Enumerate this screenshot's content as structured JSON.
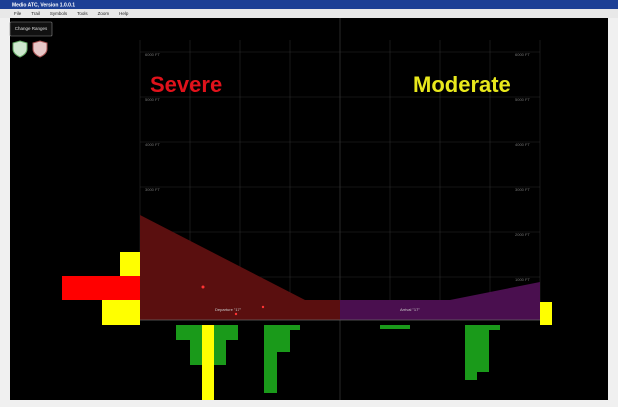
{
  "window": {
    "title": "Medio ATC, Version 1.0.0.1"
  },
  "menu": [
    "File",
    "Trail",
    "Symbols",
    "Tools",
    "Zoom",
    "Help"
  ],
  "toolbar": {
    "button": "Change Ranges"
  },
  "display": {
    "left_label": "Severe",
    "right_label": "Moderate",
    "altitude_labels": [
      "6000 FT",
      "5000 FT",
      "4000 FT",
      "3000 FT",
      "2000 FT",
      "1000 FT"
    ],
    "departure_label": "Departure \"17\"",
    "arrival_label": "Arrival \"17\""
  }
}
